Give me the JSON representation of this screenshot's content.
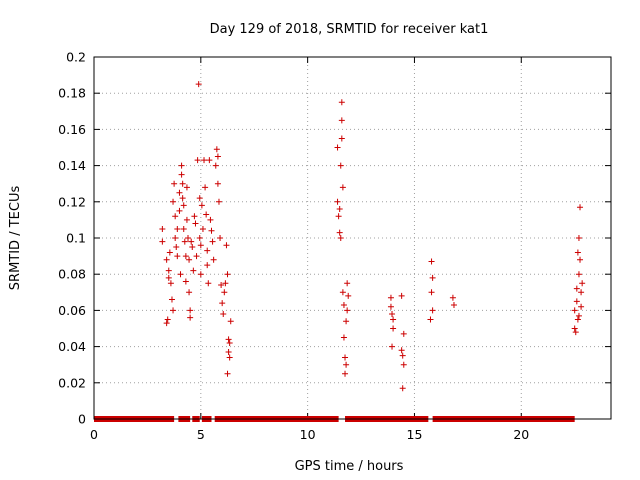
{
  "chart_data": {
    "type": "scatter",
    "title": "Day 129 of 2018, SRMTID for receiver kat1",
    "xlabel": "GPS time / hours",
    "ylabel": "SRMTID / TECUs",
    "xlim": [
      0,
      24.2
    ],
    "ylim": [
      0,
      0.2
    ],
    "x_ticks": [
      0,
      5,
      10,
      15,
      20
    ],
    "x_tick_labels": [
      "0",
      "5",
      "10",
      "15",
      "20"
    ],
    "y_ticks": [
      0,
      0.02,
      0.04,
      0.06,
      0.08,
      0.1,
      0.12,
      0.14,
      0.16,
      0.18,
      0.2
    ],
    "y_tick_labels": [
      "0",
      "0.02",
      "0.04",
      "0.06",
      "0.08",
      "0.1",
      "0.12",
      "0.14",
      "0.16",
      "0.18",
      "0.2"
    ],
    "grid": true,
    "marker": "+",
    "color": "#cc0000",
    "zero_line_segments": [
      [
        0.0,
        3.75
      ],
      [
        3.95,
        4.5
      ],
      [
        4.6,
        4.95
      ],
      [
        5.05,
        5.5
      ],
      [
        5.65,
        11.45
      ],
      [
        11.75,
        15.65
      ],
      [
        15.85,
        22.5
      ]
    ],
    "series": [
      {
        "points": [
          [
            3.2,
            0.105
          ],
          [
            3.2,
            0.098
          ],
          [
            3.4,
            0.088
          ],
          [
            3.4,
            0.053
          ],
          [
            3.45,
            0.055
          ],
          [
            3.5,
            0.082
          ],
          [
            3.5,
            0.078
          ],
          [
            3.55,
            0.092
          ],
          [
            3.6,
            0.075
          ],
          [
            3.65,
            0.066
          ],
          [
            3.7,
            0.06
          ],
          [
            3.7,
            0.12
          ],
          [
            3.75,
            0.13
          ],
          [
            3.8,
            0.112
          ],
          [
            3.8,
            0.1
          ],
          [
            3.85,
            0.095
          ],
          [
            3.9,
            0.105
          ],
          [
            3.9,
            0.09
          ],
          [
            4.0,
            0.115
          ],
          [
            4.0,
            0.125
          ],
          [
            4.05,
            0.08
          ],
          [
            4.1,
            0.14
          ],
          [
            4.1,
            0.135
          ],
          [
            4.15,
            0.13
          ],
          [
            4.15,
            0.122
          ],
          [
            4.2,
            0.118
          ],
          [
            4.2,
            0.105
          ],
          [
            4.25,
            0.098
          ],
          [
            4.3,
            0.09
          ],
          [
            4.3,
            0.076
          ],
          [
            4.35,
            0.128
          ],
          [
            4.35,
            0.11
          ],
          [
            4.4,
            0.1
          ],
          [
            4.45,
            0.088
          ],
          [
            4.45,
            0.07
          ],
          [
            4.5,
            0.06
          ],
          [
            4.5,
            0.056
          ],
          [
            4.55,
            0.098
          ],
          [
            4.6,
            0.095
          ],
          [
            4.65,
            0.082
          ],
          [
            4.7,
            0.112
          ],
          [
            4.75,
            0.108
          ],
          [
            4.8,
            0.09
          ],
          [
            4.85,
            0.143
          ],
          [
            4.9,
            0.185
          ],
          [
            4.95,
            0.122
          ],
          [
            4.95,
            0.1
          ],
          [
            5.0,
            0.096
          ],
          [
            5.0,
            0.08
          ],
          [
            5.05,
            0.118
          ],
          [
            5.1,
            0.105
          ],
          [
            5.15,
            0.143
          ],
          [
            5.2,
            0.128
          ],
          [
            5.25,
            0.113
          ],
          [
            5.3,
            0.093
          ],
          [
            5.3,
            0.085
          ],
          [
            5.35,
            0.075
          ],
          [
            5.4,
            0.143
          ],
          [
            5.45,
            0.11
          ],
          [
            5.5,
            0.104
          ],
          [
            5.55,
            0.098
          ],
          [
            5.6,
            0.088
          ],
          [
            5.7,
            0.14
          ],
          [
            5.75,
            0.149
          ],
          [
            5.8,
            0.145
          ],
          [
            5.8,
            0.13
          ],
          [
            5.85,
            0.12
          ],
          [
            5.9,
            0.1
          ],
          [
            5.95,
            0.074
          ],
          [
            6.0,
            0.064
          ],
          [
            6.05,
            0.058
          ],
          [
            6.1,
            0.07
          ],
          [
            6.15,
            0.075
          ],
          [
            6.2,
            0.096
          ],
          [
            6.25,
            0.08
          ],
          [
            6.3,
            0.044
          ],
          [
            6.3,
            0.037
          ],
          [
            6.35,
            0.034
          ],
          [
            6.4,
            0.054
          ],
          [
            6.25,
            0.025
          ],
          [
            6.35,
            0.042
          ],
          [
            11.4,
            0.15
          ],
          [
            11.4,
            0.12
          ],
          [
            11.45,
            0.112
          ],
          [
            11.5,
            0.116
          ],
          [
            11.5,
            0.103
          ],
          [
            11.55,
            0.1
          ],
          [
            11.55,
            0.14
          ],
          [
            11.6,
            0.165
          ],
          [
            11.6,
            0.175
          ],
          [
            11.6,
            0.155
          ],
          [
            11.65,
            0.128
          ],
          [
            11.65,
            0.07
          ],
          [
            11.7,
            0.063
          ],
          [
            11.7,
            0.045
          ],
          [
            11.75,
            0.034
          ],
          [
            11.75,
            0.025
          ],
          [
            11.8,
            0.03
          ],
          [
            11.8,
            0.054
          ],
          [
            11.85,
            0.06
          ],
          [
            11.85,
            0.075
          ],
          [
            11.9,
            0.068
          ],
          [
            13.9,
            0.067
          ],
          [
            13.9,
            0.062
          ],
          [
            13.95,
            0.058
          ],
          [
            14.0,
            0.055
          ],
          [
            14.0,
            0.05
          ],
          [
            13.95,
            0.04
          ],
          [
            14.4,
            0.068
          ],
          [
            14.4,
            0.038
          ],
          [
            14.45,
            0.035
          ],
          [
            14.45,
            0.017
          ],
          [
            14.5,
            0.03
          ],
          [
            14.5,
            0.047
          ],
          [
            15.8,
            0.087
          ],
          [
            15.85,
            0.078
          ],
          [
            15.8,
            0.07
          ],
          [
            15.85,
            0.06
          ],
          [
            15.75,
            0.055
          ],
          [
            16.8,
            0.067
          ],
          [
            16.85,
            0.063
          ],
          [
            22.5,
            0.06
          ],
          [
            22.5,
            0.05
          ],
          [
            22.55,
            0.048
          ],
          [
            22.6,
            0.072
          ],
          [
            22.6,
            0.065
          ],
          [
            22.65,
            0.092
          ],
          [
            22.7,
            0.1
          ],
          [
            22.7,
            0.08
          ],
          [
            22.75,
            0.117
          ],
          [
            22.75,
            0.088
          ],
          [
            22.8,
            0.07
          ],
          [
            22.8,
            0.062
          ],
          [
            22.85,
            0.075
          ],
          [
            22.65,
            0.055
          ],
          [
            22.7,
            0.057
          ]
        ]
      }
    ]
  }
}
